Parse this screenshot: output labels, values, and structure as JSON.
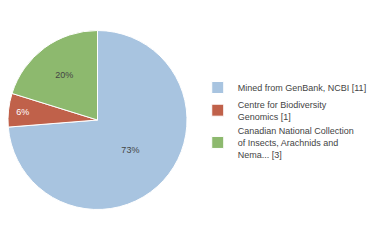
{
  "chart_data": {
    "type": "pie",
    "categories": [
      "Mined from GenBank, NCBI [11]",
      "Centre for Biodiversity\nGenomics [1]",
      "Canadian National Collection\nof Insects, Arachnids and\nNema... [3]"
    ],
    "values": [
      73,
      6,
      20
    ],
    "value_labels": [
      "73%",
      "6%",
      "20%"
    ],
    "colors": [
      "#a8c4e0",
      "#c0614a",
      "#8db96e"
    ],
    "data_labels": true,
    "legend": "right"
  }
}
